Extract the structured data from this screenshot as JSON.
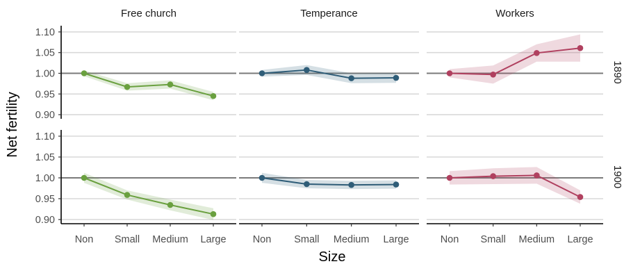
{
  "chart_data": {
    "type": "line",
    "facet_columns": [
      "Free church",
      "Temperance",
      "Workers"
    ],
    "facet_rows": [
      "1890",
      "1900"
    ],
    "categories": [
      "Non",
      "Small",
      "Medium",
      "Large"
    ],
    "xlabel": "Size",
    "ylabel": "Net fertility",
    "ylim": [
      0.89,
      1.115
    ],
    "yticks": [
      0.9,
      0.95,
      1.0,
      1.05,
      1.1
    ],
    "reference_line": 1.0,
    "grid": true,
    "colors": {
      "Free church": "#6aa03f",
      "Temperance": "#2f5d78",
      "Workers": "#b0405f"
    },
    "panels": [
      {
        "row": "1890",
        "column": "Free church",
        "values": [
          1.0,
          0.967,
          0.973,
          0.945
        ],
        "lower": [
          0.993,
          0.958,
          0.963,
          0.935
        ],
        "upper": [
          1.007,
          0.976,
          0.983,
          0.955
        ]
      },
      {
        "row": "1890",
        "column": "Temperance",
        "values": [
          1.0,
          1.008,
          0.988,
          0.989
        ],
        "lower": [
          0.992,
          0.996,
          0.976,
          0.977
        ],
        "upper": [
          1.008,
          1.02,
          1.0,
          1.001
        ]
      },
      {
        "row": "1890",
        "column": "Workers",
        "values": [
          1.0,
          0.997,
          1.049,
          1.061
        ],
        "lower": [
          0.99,
          0.975,
          1.028,
          1.028
        ],
        "upper": [
          1.01,
          1.019,
          1.07,
          1.094
        ]
      },
      {
        "row": "1900",
        "column": "Free church",
        "values": [
          1.0,
          0.959,
          0.935,
          0.913
        ],
        "lower": [
          0.988,
          0.948,
          0.922,
          0.899
        ],
        "upper": [
          1.012,
          0.97,
          0.948,
          0.927
        ]
      },
      {
        "row": "1900",
        "column": "Temperance",
        "values": [
          1.0,
          0.985,
          0.983,
          0.984
        ],
        "lower": [
          0.988,
          0.975,
          0.973,
          0.974
        ],
        "upper": [
          1.012,
          0.995,
          0.993,
          0.994
        ]
      },
      {
        "row": "1900",
        "column": "Workers",
        "values": [
          1.0,
          1.004,
          1.006,
          0.954
        ],
        "lower": [
          0.984,
          0.985,
          0.986,
          0.938
        ],
        "upper": [
          1.016,
          1.023,
          1.026,
          0.97
        ]
      }
    ]
  }
}
